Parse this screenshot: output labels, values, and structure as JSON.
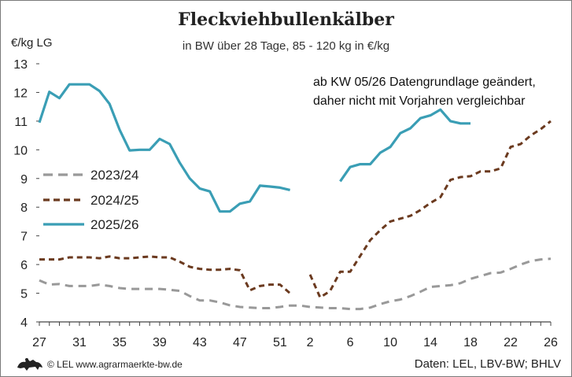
{
  "chart_data": {
    "type": "line",
    "title": "Fleckviehbullenkälber",
    "subtitle": "in BW über 28 Tage, 85 - 120 kg in €/kg",
    "ylabel": "€/kg LG",
    "xlabel": "",
    "ylim": [
      4,
      13
    ],
    "yticks": [
      4,
      5,
      6,
      7,
      8,
      9,
      10,
      11,
      12,
      13
    ],
    "xtick_labels": [
      "27",
      "31",
      "35",
      "39",
      "43",
      "47",
      "51",
      "2",
      "6",
      "10",
      "14",
      "18",
      "22",
      "26"
    ],
    "x_weeks": [
      "27",
      "28",
      "29",
      "30",
      "31",
      "32",
      "33",
      "34",
      "35",
      "36",
      "37",
      "38",
      "39",
      "40",
      "41",
      "42",
      "43",
      "44",
      "45",
      "46",
      "47",
      "48",
      "49",
      "50",
      "51",
      "52",
      "1",
      "2",
      "3",
      "4",
      "5",
      "6",
      "7",
      "8",
      "9",
      "10",
      "11",
      "12",
      "13",
      "14",
      "15",
      "16",
      "17",
      "18",
      "19",
      "20",
      "21",
      "22",
      "23",
      "24",
      "25",
      "26"
    ],
    "grid": false,
    "legend_position": "left",
    "note": "ab KW 05/26 Datengrundlage geändert, daher nicht mit Vorjahren vergleichbar",
    "series": [
      {
        "name": "2023/24",
        "color": "#999999",
        "style": "dashed",
        "values": [
          5.45,
          5.3,
          5.32,
          5.25,
          5.25,
          5.25,
          5.3,
          5.25,
          5.18,
          5.15,
          5.15,
          5.15,
          5.15,
          5.12,
          5.08,
          4.9,
          4.75,
          4.75,
          4.68,
          4.58,
          4.52,
          4.5,
          4.48,
          4.48,
          4.52,
          4.57,
          4.57,
          4.52,
          4.5,
          4.48,
          4.48,
          4.45,
          4.45,
          4.5,
          4.62,
          4.72,
          4.78,
          4.9,
          5.05,
          5.22,
          5.25,
          5.28,
          5.35,
          5.5,
          5.6,
          5.7,
          5.72,
          5.85,
          6.0,
          6.12,
          6.18,
          6.2
        ]
      },
      {
        "name": "2024/25",
        "color": "#6b3a1f",
        "style": "dashed",
        "values": [
          6.18,
          6.18,
          6.18,
          6.25,
          6.25,
          6.25,
          6.22,
          6.28,
          6.22,
          6.22,
          6.25,
          6.28,
          6.25,
          6.25,
          6.1,
          5.92,
          5.85,
          5.82,
          5.82,
          5.85,
          5.8,
          5.1,
          5.25,
          5.3,
          5.3,
          5.0,
          null,
          5.65,
          4.85,
          5.08,
          5.75,
          5.75,
          6.3,
          6.85,
          7.2,
          7.5,
          7.6,
          7.7,
          7.9,
          8.15,
          8.35,
          8.95,
          9.05,
          9.08,
          9.25,
          9.25,
          9.35,
          10.1,
          10.2,
          10.5,
          10.72,
          11.0
        ]
      },
      {
        "name": "2025/26",
        "color": "#3a9eb5",
        "style": "solid",
        "values": [
          10.95,
          12.02,
          11.8,
          12.28,
          12.28,
          12.28,
          12.05,
          11.6,
          10.7,
          9.98,
          10.0,
          10.0,
          10.38,
          10.2,
          9.55,
          9.0,
          8.65,
          8.55,
          7.85,
          7.85,
          8.12,
          8.2,
          8.75,
          8.72,
          8.68,
          8.6,
          null,
          null,
          null,
          null,
          8.9,
          9.4,
          9.5,
          9.5,
          9.9,
          10.1,
          10.58,
          10.75,
          11.1,
          11.2,
          11.4,
          11.0,
          10.92,
          10.92,
          null,
          null,
          null,
          null,
          null,
          null,
          null,
          null
        ]
      }
    ]
  },
  "footer": {
    "copyright": "© LEL www.agrarmaerkte-bw.de",
    "source": "Daten: LEL, LBV-BW; BHLV"
  }
}
